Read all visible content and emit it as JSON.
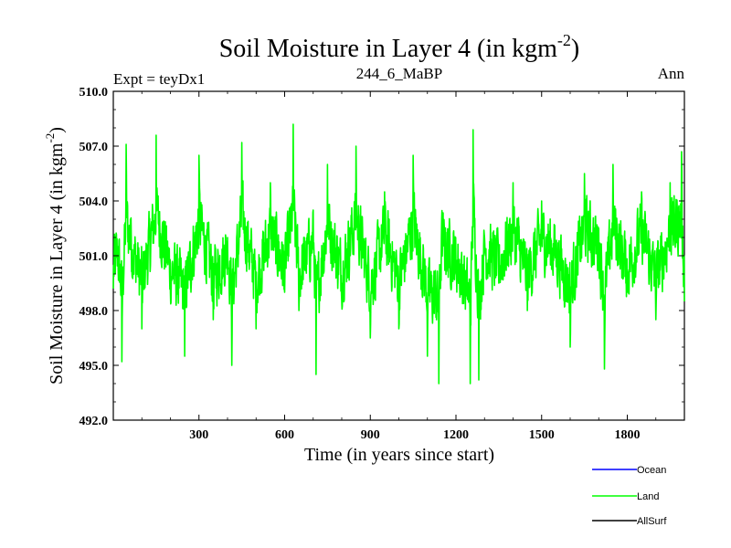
{
  "chart_data": {
    "type": "line",
    "title": "Soil Moisture in Layer 4 (in kgm",
    "title_sup": "-2",
    "title_close": ")",
    "subtitle_left": "Expt = teyDx1",
    "subtitle_center": "244_6_MaBP",
    "subtitle_right": "Ann",
    "xlabel": "Time (in years since start)",
    "ylabel": "Soil Moisture in Layer 4 (in kgm",
    "ylabel_sup": "-2",
    "ylabel_close": ")",
    "xlim": [
      0,
      2000
    ],
    "ylim": [
      492.0,
      510.0
    ],
    "xticks": [
      300,
      600,
      900,
      1200,
      1500,
      1800
    ],
    "yticks": [
      "492.0",
      "495.0",
      "498.0",
      "501.0",
      "504.0",
      "507.0",
      "510.0"
    ],
    "grid": false,
    "legend_position": "bottom-right, below plot",
    "series": [
      {
        "name": "Ocean",
        "color": "#0000ff",
        "values": []
      },
      {
        "name": "Land",
        "color": "#00ff00",
        "x": [
          0,
          15,
          30,
          45,
          60,
          100,
          150,
          200,
          250,
          300,
          350,
          400,
          415,
          450,
          500,
          550,
          600,
          630,
          650,
          700,
          710,
          750,
          800,
          850,
          900,
          950,
          1000,
          1050,
          1100,
          1140,
          1150,
          1200,
          1250,
          1260,
          1280,
          1300,
          1350,
          1400,
          1450,
          1500,
          1550,
          1600,
          1650,
          1700,
          1720,
          1750,
          1800,
          1850,
          1900,
          1950,
          1990,
          2000
        ],
        "y": [
          499.2,
          501.5,
          495.2,
          507.1,
          503.0,
          497.0,
          507.6,
          499.0,
          495.5,
          506.5,
          497.5,
          502.0,
          495.0,
          507.2,
          497.0,
          505.0,
          499.0,
          508.2,
          498.0,
          503.5,
          494.5,
          506.0,
          498.5,
          507.0,
          496.5,
          504.5,
          497.0,
          506.5,
          495.5,
          494.0,
          503.0,
          500.5,
          494.0,
          507.9,
          494.2,
          502.0,
          499.5,
          505.0,
          498.0,
          504.0,
          501.5,
          496.0,
          505.5,
          502.5,
          494.8,
          506.0,
          499.0,
          504.5,
          497.5,
          505.0,
          506.7,
          498.5
        ]
      },
      {
        "name": "AllSurf",
        "color": "#000000",
        "values": []
      }
    ]
  }
}
